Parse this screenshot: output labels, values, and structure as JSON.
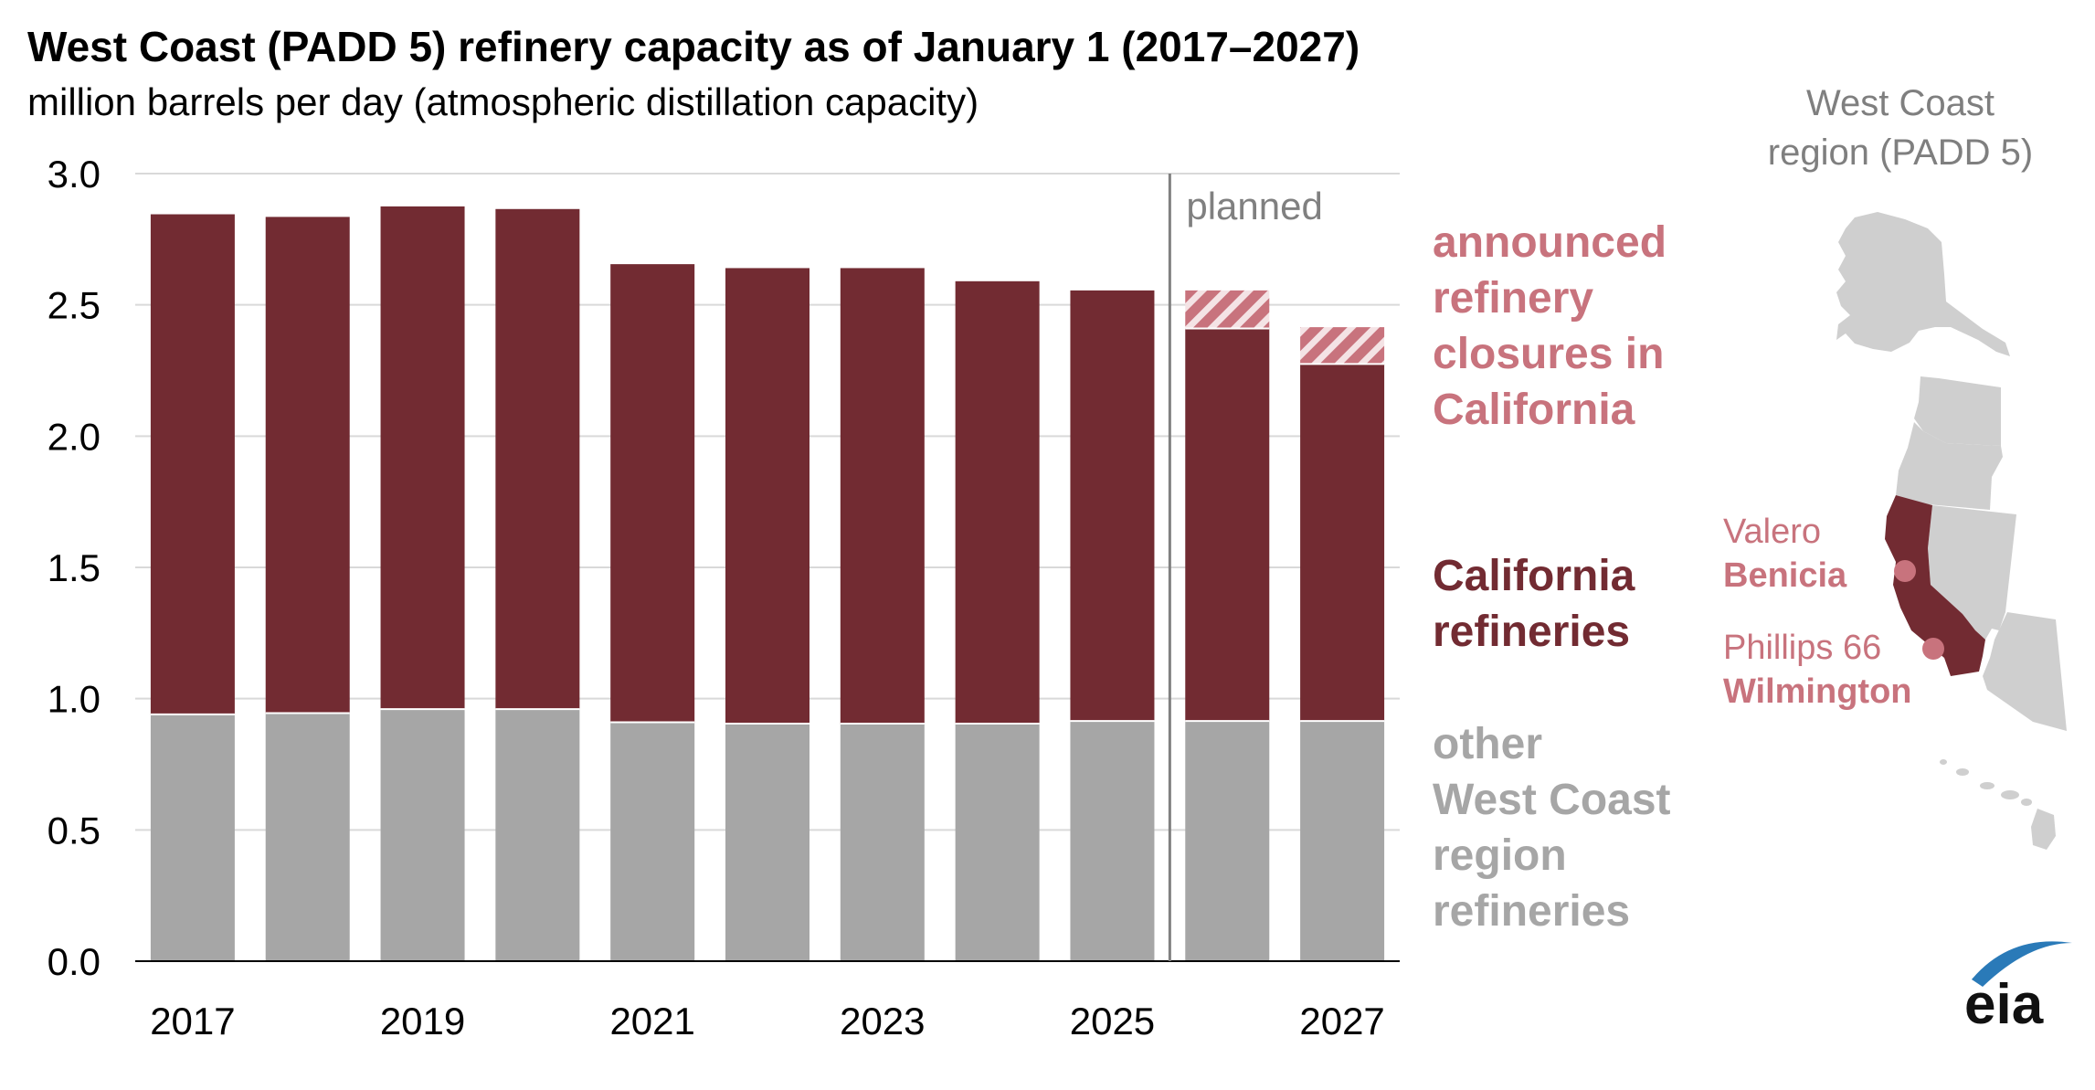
{
  "title": "West Coast (PADD 5) refinery capacity as of January 1 (2017–2027)",
  "subtitle": "million barrels per day (atmospheric distillation capacity)",
  "colors": {
    "california": "#722b32",
    "other": "#a6a6a6",
    "closures": "#c8737d",
    "map_gray": "#cfcfcf",
    "planned_line": "#808080"
  },
  "chart_data": {
    "type": "bar",
    "stacked": true,
    "categories": [
      "2017",
      "2018",
      "2019",
      "2020",
      "2021",
      "2022",
      "2023",
      "2024",
      "2025",
      "2026",
      "2027"
    ],
    "x_tick_labels": [
      "2017",
      "",
      "2019",
      "",
      "2021",
      "",
      "2023",
      "",
      "2025",
      "",
      "2027"
    ],
    "series": [
      {
        "name": "other West Coast region refineries",
        "values": [
          0.94,
          0.945,
          0.96,
          0.96,
          0.91,
          0.905,
          0.905,
          0.905,
          0.915,
          0.915,
          0.915
        ]
      },
      {
        "name": "California refineries",
        "values": [
          1.905,
          1.89,
          1.915,
          1.905,
          1.745,
          1.735,
          1.735,
          1.685,
          1.64,
          1.495,
          1.36
        ]
      },
      {
        "name": "announced refinery closures in California",
        "values": [
          0,
          0,
          0,
          0,
          0,
          0,
          0,
          0,
          0,
          0.145,
          0.14
        ]
      }
    ],
    "ylim": [
      0,
      3.0
    ],
    "y_ticks": [
      "0.0",
      "0.5",
      "1.0",
      "1.5",
      "2.0",
      "2.5",
      "3.0"
    ],
    "grid": true,
    "planned_annotation": "planned",
    "planned_from": "2026"
  },
  "legend": {
    "closures": [
      "announced",
      "refinery",
      "closures in",
      "California"
    ],
    "california": [
      "California",
      "refineries"
    ],
    "other": [
      "other",
      "West Coast",
      "region",
      "refineries"
    ]
  },
  "map": {
    "title": [
      "West Coast",
      "region (PADD 5)"
    ],
    "refineries": [
      {
        "owner": "Valero",
        "site": "Benicia"
      },
      {
        "owner": "Phillips 66",
        "site": "Wilmington"
      }
    ]
  },
  "logo": "eia"
}
